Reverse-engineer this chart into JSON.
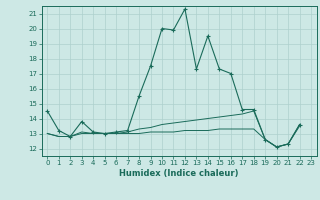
{
  "xlabel": "Humidex (Indice chaleur)",
  "background_color": "#cde8e5",
  "grid_color": "#aed0ce",
  "line_color": "#1a6b5a",
  "x_values": [
    0,
    1,
    2,
    3,
    4,
    5,
    6,
    7,
    8,
    9,
    10,
    11,
    12,
    13,
    14,
    15,
    16,
    17,
    18,
    19,
    20,
    21,
    22,
    23
  ],
  "series1": [
    14.5,
    13.2,
    12.8,
    13.8,
    13.1,
    13.0,
    13.1,
    13.2,
    15.5,
    17.5,
    20.0,
    19.9,
    21.3,
    17.3,
    19.5,
    17.3,
    17.0,
    14.6,
    14.6,
    12.6,
    12.1,
    12.3,
    13.6,
    null
  ],
  "series2": [
    13.0,
    12.8,
    12.8,
    13.1,
    13.0,
    13.0,
    13.0,
    13.1,
    13.3,
    13.4,
    13.6,
    13.7,
    13.8,
    13.9,
    14.0,
    14.1,
    14.2,
    14.3,
    14.5,
    12.6,
    12.1,
    12.3,
    13.6,
    null
  ],
  "series3": [
    13.0,
    12.8,
    12.8,
    13.0,
    13.0,
    13.0,
    13.0,
    13.0,
    13.0,
    13.1,
    13.1,
    13.1,
    13.2,
    13.2,
    13.2,
    13.3,
    13.3,
    13.3,
    13.3,
    12.6,
    12.1,
    12.3,
    13.5,
    null
  ],
  "ylim": [
    11.5,
    21.5
  ],
  "xlim": [
    -0.5,
    23.5
  ],
  "yticks": [
    12,
    13,
    14,
    15,
    16,
    17,
    18,
    19,
    20,
    21
  ],
  "xticks": [
    0,
    1,
    2,
    3,
    4,
    5,
    6,
    7,
    8,
    9,
    10,
    11,
    12,
    13,
    14,
    15,
    16,
    17,
    18,
    19,
    20,
    21,
    22,
    23
  ]
}
